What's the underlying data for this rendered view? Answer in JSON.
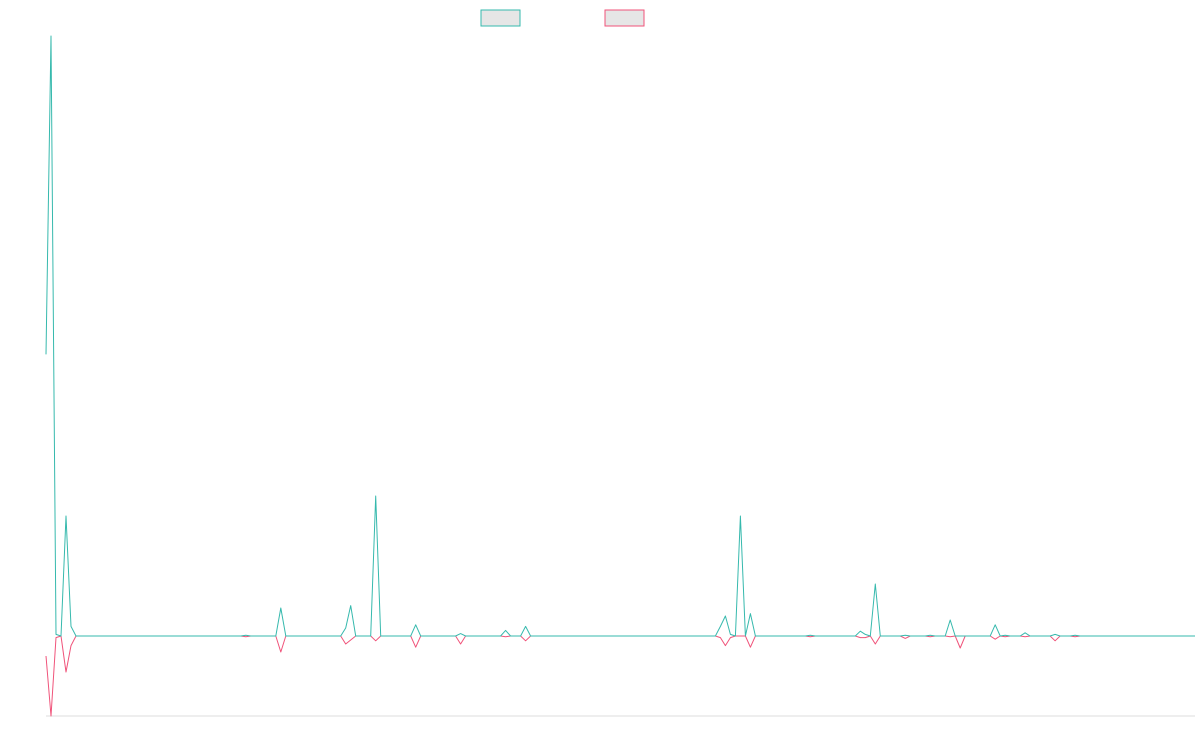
{
  "colors": {
    "series_a": "#36b9ad",
    "series_b": "#f0537a",
    "legend_fill": "#e6e6e6",
    "axis": "#dddddd"
  },
  "legend": {
    "placement": "top-center",
    "labels": [
      "",
      ""
    ]
  },
  "chart_data": {
    "type": "line",
    "title": "",
    "xlabel": "",
    "ylabel": "",
    "grid": false,
    "legend_placement": "top-center",
    "ylim": [
      -100,
      750
    ],
    "x_range": [
      0,
      230
    ],
    "series": [
      {
        "values": [
          [
            0,
            352
          ],
          [
            1,
            750
          ],
          [
            2,
            2
          ],
          [
            3,
            0
          ],
          [
            4,
            150
          ],
          [
            5,
            12
          ],
          [
            6,
            0
          ],
          [
            39,
            0
          ],
          [
            40,
            1
          ],
          [
            41,
            0
          ],
          [
            46,
            0
          ],
          [
            47,
            35
          ],
          [
            48,
            0
          ],
          [
            59,
            0
          ],
          [
            60,
            10
          ],
          [
            61,
            38
          ],
          [
            62,
            0
          ],
          [
            65,
            0
          ],
          [
            66,
            175
          ],
          [
            67,
            0
          ],
          [
            73,
            0
          ],
          [
            74,
            14
          ],
          [
            75,
            0
          ],
          [
            82,
            0
          ],
          [
            83,
            3
          ],
          [
            84,
            0
          ],
          [
            91,
            0
          ],
          [
            92,
            7
          ],
          [
            93,
            0
          ],
          [
            95,
            0
          ],
          [
            96,
            12
          ],
          [
            97,
            0
          ],
          [
            134,
            0
          ],
          [
            135,
            12
          ],
          [
            136,
            25
          ],
          [
            137,
            2
          ],
          [
            138,
            0
          ],
          [
            139,
            150
          ],
          [
            140,
            0
          ],
          [
            141,
            28
          ],
          [
            142,
            0
          ],
          [
            152,
            0
          ],
          [
            153,
            1
          ],
          [
            154,
            0
          ],
          [
            162,
            0
          ],
          [
            163,
            6
          ],
          [
            164,
            2
          ],
          [
            165,
            0
          ],
          [
            166,
            65
          ],
          [
            167,
            0
          ],
          [
            171,
            0
          ],
          [
            172,
            1
          ],
          [
            173,
            0
          ],
          [
            176,
            0
          ],
          [
            177,
            1
          ],
          [
            178,
            0
          ],
          [
            180,
            0
          ],
          [
            181,
            20
          ],
          [
            182,
            0
          ],
          [
            189,
            0
          ],
          [
            190,
            14
          ],
          [
            191,
            0
          ],
          [
            192,
            1
          ],
          [
            193,
            0
          ],
          [
            195,
            0
          ],
          [
            196,
            4
          ],
          [
            197,
            0
          ],
          [
            201,
            0
          ],
          [
            202,
            2
          ],
          [
            203,
            0
          ],
          [
            205,
            0
          ],
          [
            206,
            1
          ],
          [
            207,
            0
          ],
          [
            230,
            0
          ]
        ]
      },
      {
        "values": [
          [
            0,
            -25
          ],
          [
            1,
            -100
          ],
          [
            2,
            -2
          ],
          [
            3,
            0
          ],
          [
            4,
            -45
          ],
          [
            5,
            -12
          ],
          [
            6,
            0
          ],
          [
            39,
            0
          ],
          [
            40,
            -1
          ],
          [
            41,
            0
          ],
          [
            46,
            0
          ],
          [
            47,
            -20
          ],
          [
            48,
            0
          ],
          [
            59,
            0
          ],
          [
            60,
            -10
          ],
          [
            61,
            -5
          ],
          [
            62,
            0
          ],
          [
            65,
            0
          ],
          [
            66,
            -6
          ],
          [
            67,
            0
          ],
          [
            73,
            0
          ],
          [
            74,
            -14
          ],
          [
            75,
            0
          ],
          [
            82,
            0
          ],
          [
            83,
            -10
          ],
          [
            84,
            0
          ],
          [
            91,
            0
          ],
          [
            92,
            -1
          ],
          [
            93,
            0
          ],
          [
            95,
            0
          ],
          [
            96,
            -6
          ],
          [
            97,
            0
          ],
          [
            134,
            0
          ],
          [
            135,
            -2
          ],
          [
            136,
            -12
          ],
          [
            137,
            -2
          ],
          [
            138,
            0
          ],
          [
            139,
            0
          ],
          [
            140,
            0
          ],
          [
            141,
            -14
          ],
          [
            142,
            0
          ],
          [
            152,
            0
          ],
          [
            153,
            -1
          ],
          [
            154,
            0
          ],
          [
            162,
            0
          ],
          [
            163,
            -2
          ],
          [
            164,
            -2
          ],
          [
            165,
            0
          ],
          [
            166,
            -10
          ],
          [
            167,
            0
          ],
          [
            171,
            0
          ],
          [
            172,
            -3
          ],
          [
            173,
            0
          ],
          [
            176,
            0
          ],
          [
            177,
            -1
          ],
          [
            178,
            0
          ],
          [
            180,
            0
          ],
          [
            181,
            -1
          ],
          [
            182,
            0
          ],
          [
            183,
            -15
          ],
          [
            184,
            0
          ],
          [
            189,
            0
          ],
          [
            190,
            -4
          ],
          [
            191,
            0
          ],
          [
            192,
            -1
          ],
          [
            193,
            0
          ],
          [
            195,
            0
          ],
          [
            196,
            -1
          ],
          [
            197,
            0
          ],
          [
            201,
            0
          ],
          [
            202,
            -6
          ],
          [
            203,
            0
          ],
          [
            205,
            0
          ],
          [
            206,
            -1
          ],
          [
            207,
            0
          ],
          [
            230,
            0
          ]
        ]
      }
    ]
  }
}
